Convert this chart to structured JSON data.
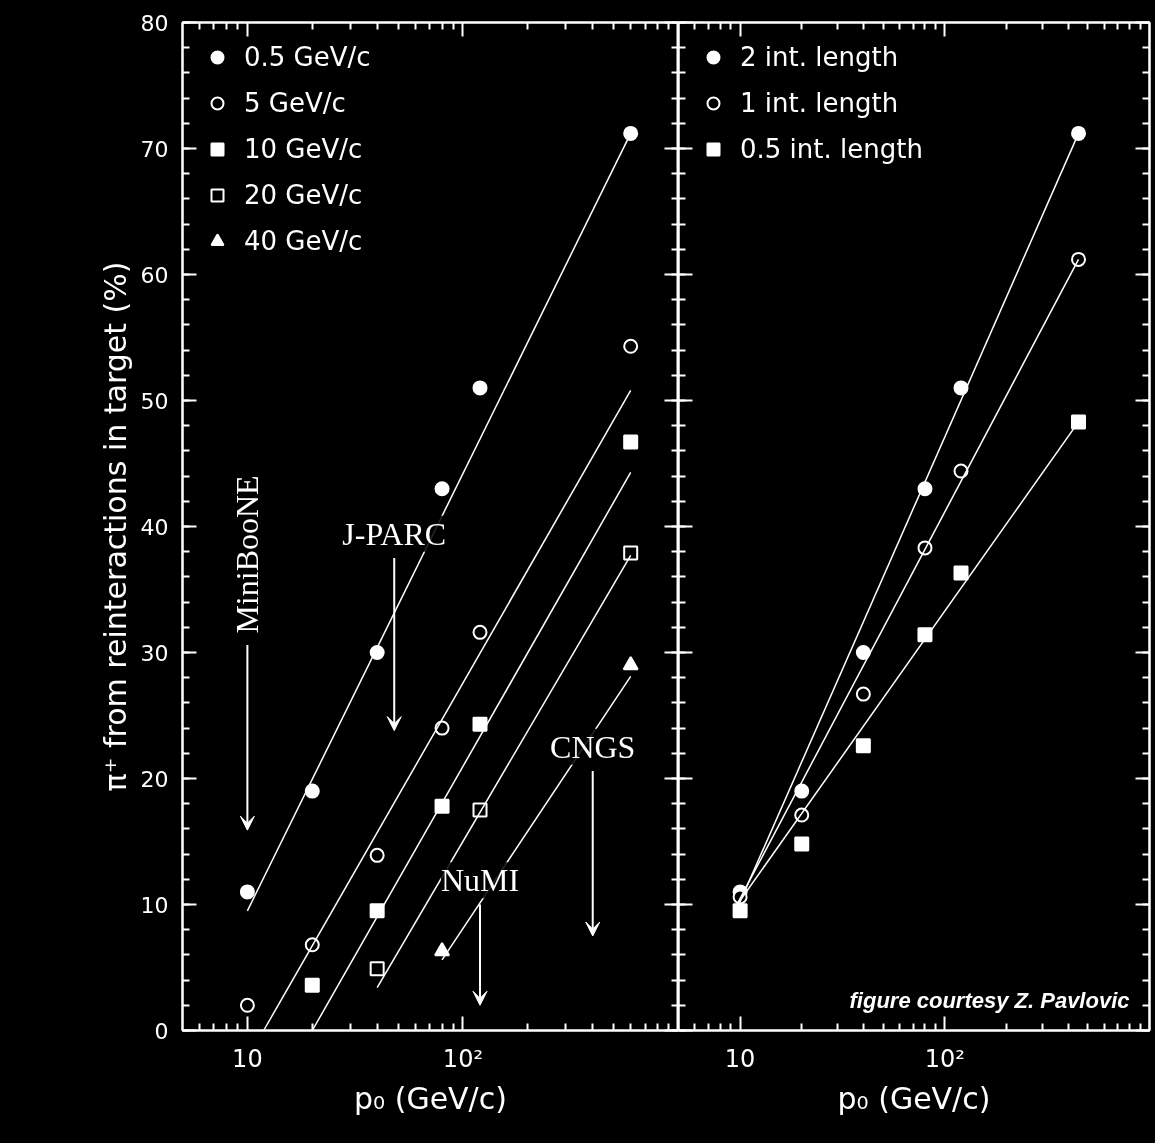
{
  "chart_data": [
    {
      "type": "scatter",
      "xlabel": "p₀ (GeV/c)",
      "ylabel": "π⁺ from reinteractions in target (%)",
      "log": "x",
      "xlim": [
        5,
        1000
      ],
      "xticks": [
        10,
        {
          "value": 100,
          "label": "10²"
        }
      ],
      "ylim": [
        0,
        80
      ],
      "yticks": [
        0,
        10,
        20,
        30,
        40,
        50,
        60,
        70,
        80
      ],
      "legend": "top left",
      "grid": false,
      "series": [
        {
          "name": "0.5 GeV/c",
          "color": "#ffffff",
          "marker": "circle",
          "x": [
            10,
            20,
            40,
            80,
            120,
            600
          ],
          "values": [
            11,
            19,
            30,
            43,
            51,
            71.2
          ]
        },
        {
          "name": "5 GeV/c",
          "color": "#ffffff",
          "marker": "circle_open",
          "x": [
            10,
            20,
            40,
            80,
            120,
            600
          ],
          "values": [
            2,
            6.8,
            13.9,
            24,
            31.6,
            54.3
          ]
        },
        {
          "name": "10 GeV/c",
          "color": "#ffffff",
          "marker": "square",
          "x": [
            20,
            40,
            80,
            120,
            600
          ],
          "values": [
            3.6,
            9.5,
            17.8,
            24.3,
            46.7
          ]
        },
        {
          "name": "20 GeV/c",
          "color": "#ffffff",
          "marker": "square_open",
          "x": [
            40,
            120,
            600
          ],
          "values": [
            4.9,
            17.5,
            37.9
          ]
        },
        {
          "name": "40 GeV/c",
          "color": "#ffffff",
          "marker": "triangle",
          "x": [
            80,
            600
          ],
          "values": [
            6.3,
            29
          ]
        },
        {
          "type": "line",
          "color": "#ffffff",
          "x": [
            10,
            600
          ],
          "values": [
            9.5,
            71.2
          ]
        },
        {
          "type": "line",
          "color": "#ffffff",
          "x": [
            11.9,
            600
          ],
          "values": [
            0,
            50.8
          ]
        },
        {
          "type": "line",
          "color": "#ffffff",
          "x": [
            20,
            600
          ],
          "values": [
            0,
            44.3
          ]
        },
        {
          "type": "line",
          "color": "#ffffff",
          "x": [
            40,
            600
          ],
          "values": [
            3.4,
            37.7
          ]
        },
        {
          "type": "line",
          "color": "#ffffff",
          "x": [
            80,
            600
          ],
          "values": [
            5.6,
            28.1
          ]
        }
      ],
      "annotations": [
        "MiniBooNE",
        "J-PARC",
        "NuMI",
        "CNGS"
      ]
    },
    {
      "type": "scatter",
      "xlabel": "p₀ (GeV/c)",
      "log": "x",
      "tick_labels": "x",
      "xlim": [
        5,
        1000
      ],
      "xticks": [
        10,
        {
          "value": 100,
          "label": "10²"
        }
      ],
      "ylim": [
        0,
        80
      ],
      "yticks": [
        0,
        10,
        20,
        30,
        40,
        50,
        60,
        70,
        80
      ],
      "legend": "top left",
      "grid": false,
      "series": [
        {
          "name": "2 int. length",
          "color": "#ffffff",
          "marker": "circle",
          "x": [
            10,
            20,
            40,
            80,
            120,
            450
          ],
          "values": [
            11,
            19,
            30,
            43,
            51,
            71.2
          ]
        },
        {
          "name": "1 int. length",
          "color": "#ffffff",
          "marker": "circle_open",
          "x": [
            10,
            20,
            40,
            80,
            120,
            450
          ],
          "values": [
            10.6,
            17.1,
            26.7,
            38.3,
            44.4,
            61.2
          ]
        },
        {
          "name": "0.5 int. length",
          "color": "#ffffff",
          "marker": "square",
          "x": [
            10,
            20,
            40,
            80,
            120,
            450
          ],
          "values": [
            9.5,
            14.8,
            22.6,
            31.4,
            36.3,
            48.3
          ]
        },
        {
          "type": "line",
          "color": "#ffffff",
          "x": [
            9.5,
            450
          ],
          "values": [
            9.4,
            71.2
          ]
        },
        {
          "type": "line",
          "color": "#ffffff",
          "x": [
            9.5,
            450
          ],
          "values": [
            9.8,
            61.2
          ]
        },
        {
          "type": "line",
          "color": "#ffffff",
          "x": [
            9.5,
            450
          ],
          "values": [
            9.8,
            48.3
          ]
        }
      ],
      "annotations": [
        "figure courtesy Z. Pavlovic"
      ]
    }
  ]
}
